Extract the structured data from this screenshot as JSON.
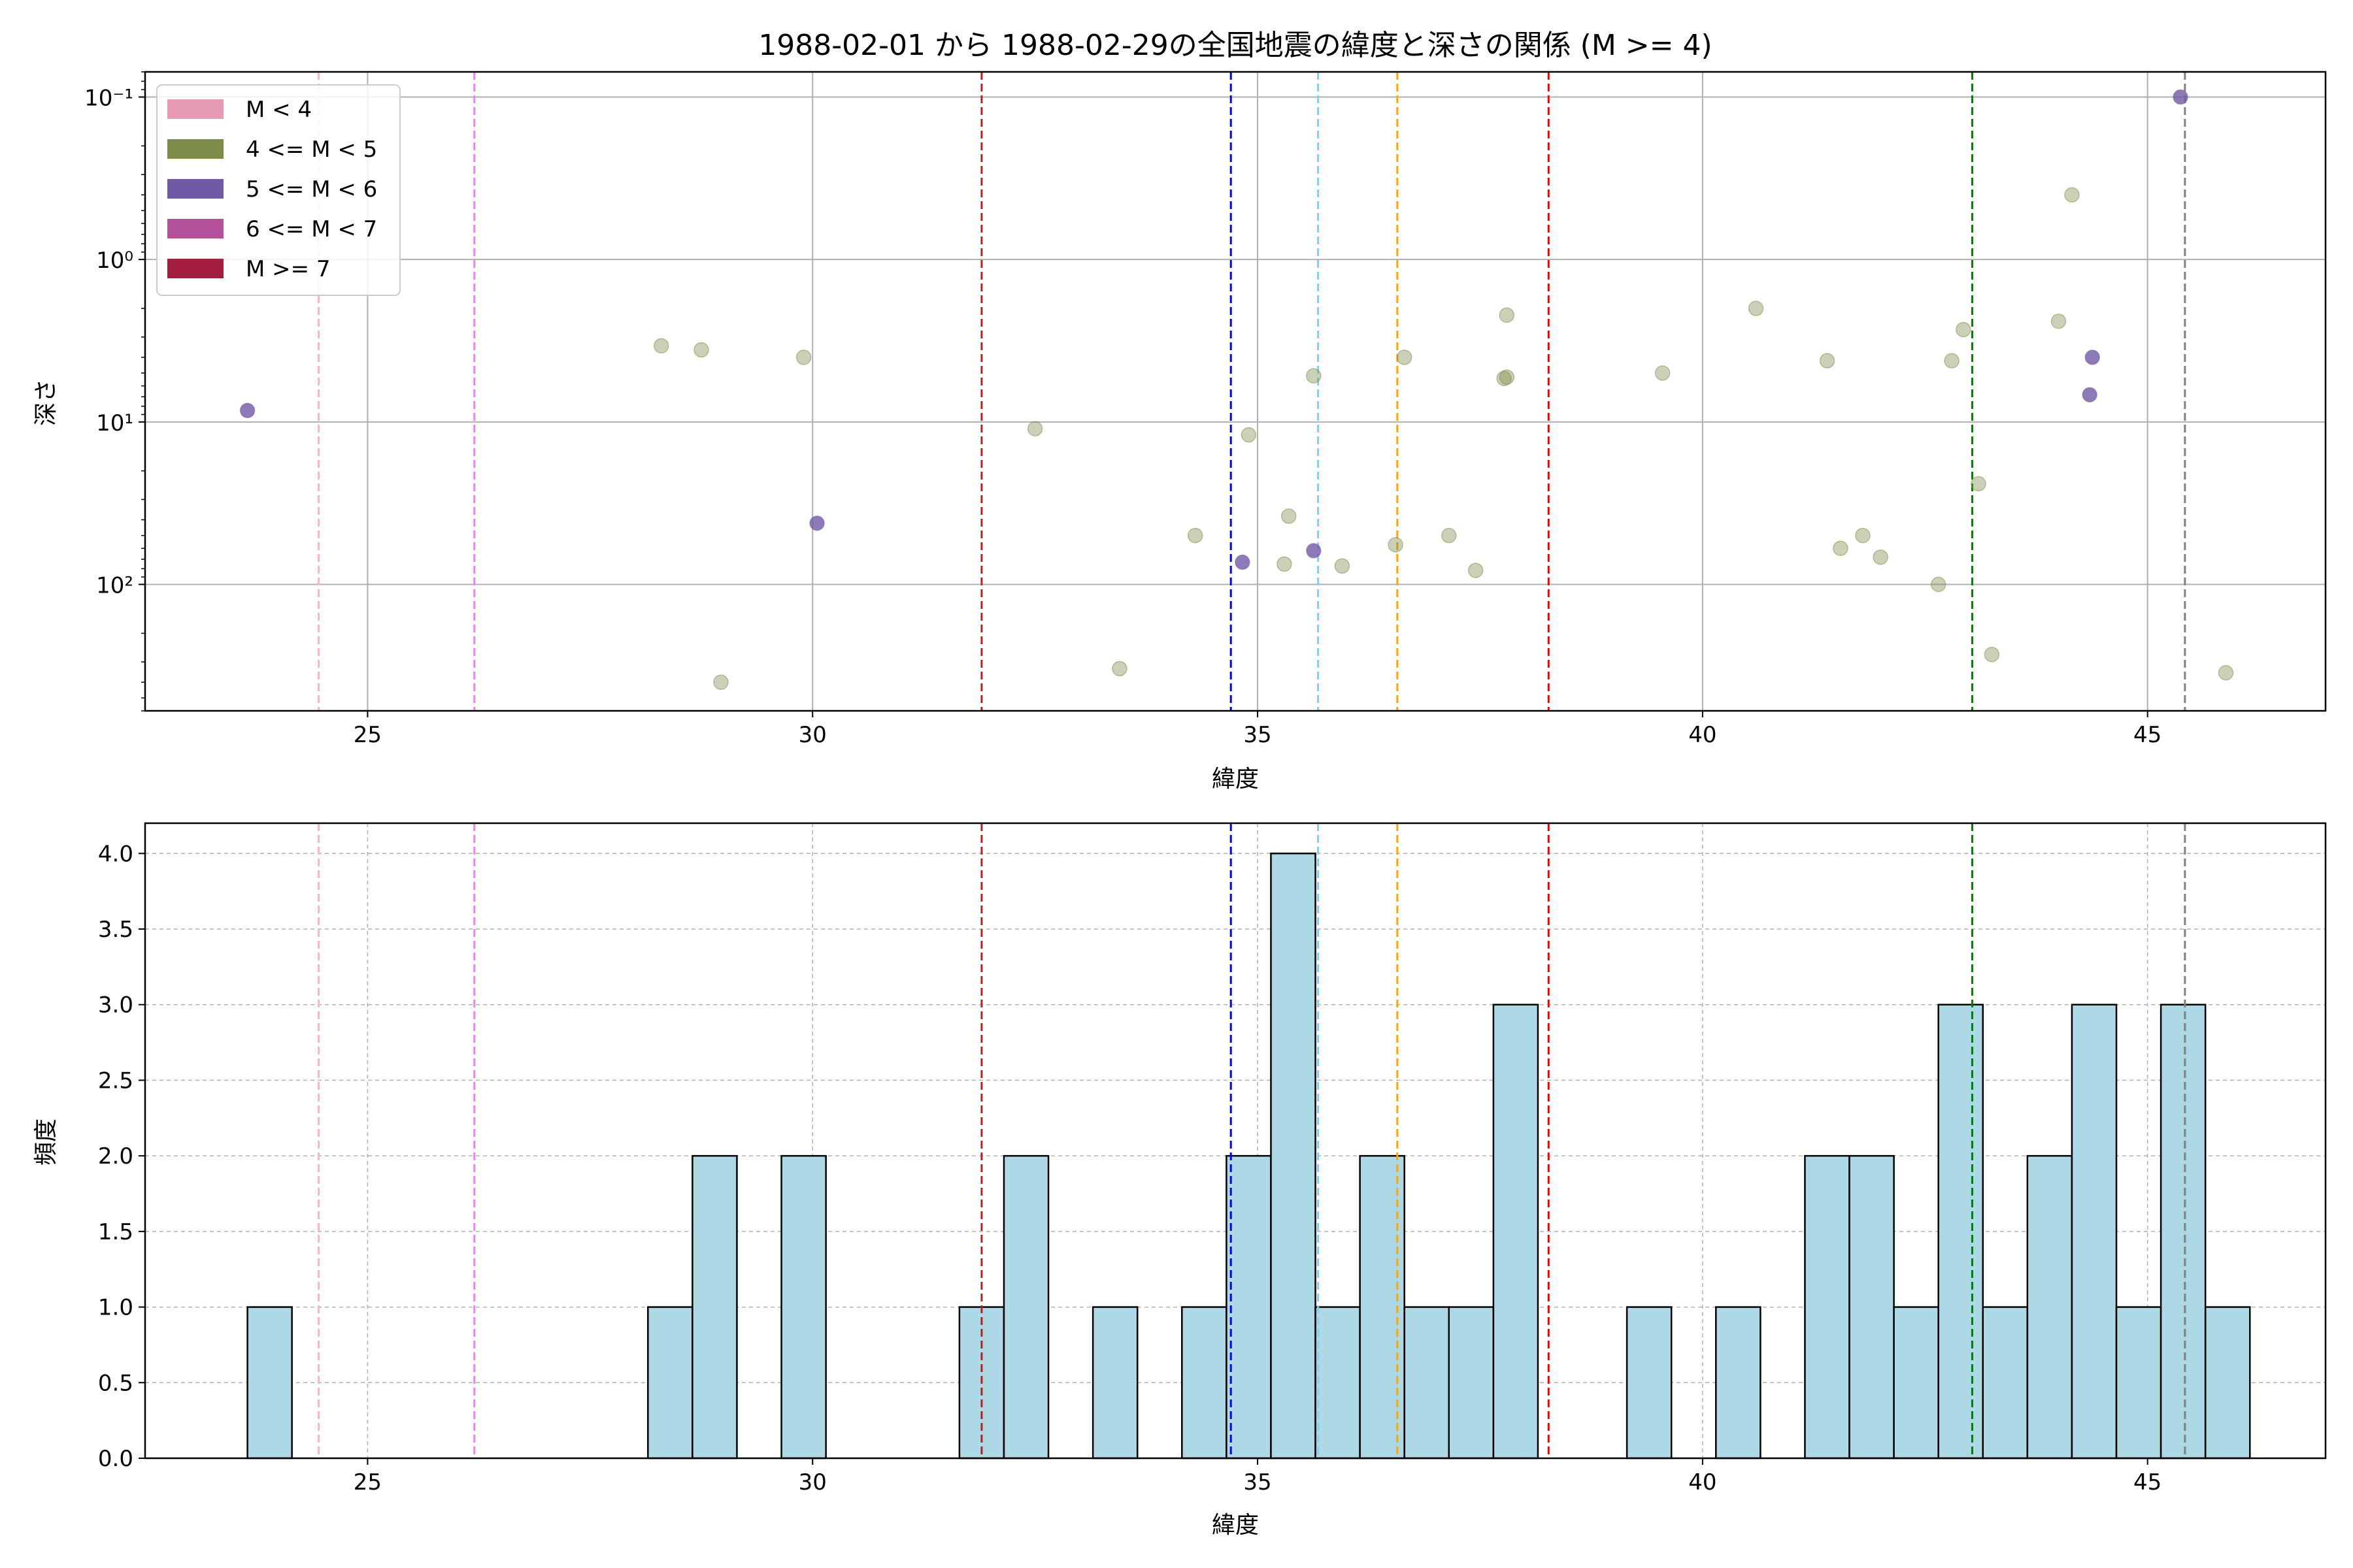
{
  "chart_data": [
    {
      "type": "scatter",
      "title": "1988-02-01 から 1988-02-29の全国地震の緯度と深さの関係 (M >= 4)",
      "xlabel": "緯度",
      "ylabel": "深さ",
      "xlim": [
        22.5,
        47.0
      ],
      "ylim_log": [
        0.07,
        600
      ],
      "y_scale": "log",
      "y_inverted": true,
      "grid": true,
      "xticks": [
        25,
        30,
        35,
        40,
        45
      ],
      "xtick_labels": [
        "25",
        "30",
        "35",
        "40",
        "45"
      ],
      "yticks": [
        0.1,
        1,
        10,
        100
      ],
      "ytick_labels": [
        "10⁻¹",
        "10⁰",
        "10¹",
        "10²"
      ],
      "legend": {
        "placement": "top-left",
        "entries": [
          {
            "label": "M < 4",
            "color": "#e79ab3"
          },
          {
            "label": "4 <= M < 5",
            "color": "#7d8c48"
          },
          {
            "label": "5 <= M < 6",
            "color": "#7059a5"
          },
          {
            "label": "6 <= M < 7",
            "color": "#b2519a"
          },
          {
            "label": "M >= 7",
            "color": "#a31e40"
          }
        ]
      },
      "vlines": [
        {
          "x": 24.45,
          "color": "#ffb6c1"
        },
        {
          "x": 26.2,
          "color": "#ee82ee"
        },
        {
          "x": 31.9,
          "color": "#b22222"
        },
        {
          "x": 34.7,
          "color": "#0000ff"
        },
        {
          "x": 35.68,
          "color": "#87ceeb"
        },
        {
          "x": 36.57,
          "color": "#ffa500"
        },
        {
          "x": 38.27,
          "color": "#ff0000"
        },
        {
          "x": 43.03,
          "color": "#008000"
        },
        {
          "x": 45.42,
          "color": "#808080"
        }
      ],
      "series": [
        {
          "color": "#7d8c48",
          "points": [
            [
              28.3,
              3.4
            ],
            [
              28.75,
              3.6
            ],
            [
              28.97,
              400
            ],
            [
              29.9,
              4.0
            ],
            [
              32.5,
              11
            ],
            [
              33.45,
              330
            ],
            [
              34.3,
              50
            ],
            [
              34.9,
              12
            ],
            [
              35.3,
              75
            ],
            [
              35.35,
              38
            ],
            [
              35.63,
              5.2
            ],
            [
              35.95,
              77
            ],
            [
              36.55,
              57
            ],
            [
              36.65,
              4.0
            ],
            [
              37.15,
              50
            ],
            [
              37.45,
              82
            ],
            [
              37.77,
              5.4
            ],
            [
              37.8,
              5.3
            ],
            [
              37.8,
              2.2
            ],
            [
              39.55,
              5.0
            ],
            [
              40.6,
              2.0
            ],
            [
              41.4,
              4.2
            ],
            [
              41.55,
              60
            ],
            [
              41.8,
              50
            ],
            [
              42.0,
              68
            ],
            [
              42.65,
              100
            ],
            [
              42.8,
              4.2
            ],
            [
              42.93,
              2.7
            ],
            [
              43.1,
              24
            ],
            [
              43.25,
              270
            ],
            [
              44.0,
              2.4
            ],
            [
              44.15,
              0.4
            ],
            [
              45.88,
              350
            ]
          ]
        },
        {
          "color": "#7059a5",
          "points": [
            [
              23.65,
              8.5
            ],
            [
              30.05,
              42
            ],
            [
              34.83,
              73
            ],
            [
              35.63,
              62
            ],
            [
              44.35,
              6.8
            ],
            [
              44.38,
              4.0
            ],
            [
              45.37,
              0.1
            ]
          ]
        }
      ]
    },
    {
      "type": "bar",
      "xlabel": "緯度",
      "ylabel": "頻度",
      "xlim": [
        22.5,
        47.0
      ],
      "ylim": [
        0,
        4.2
      ],
      "grid": true,
      "xticks": [
        25,
        30,
        35,
        40,
        45
      ],
      "xtick_labels": [
        "25",
        "30",
        "35",
        "40",
        "45"
      ],
      "yticks": [
        0.0,
        0.5,
        1.0,
        1.5,
        2.0,
        2.5,
        3.0,
        3.5,
        4.0
      ],
      "ytick_labels": [
        "0.0",
        "0.5",
        "1.0",
        "1.5",
        "2.0",
        "2.5",
        "3.0",
        "3.5",
        "4.0"
      ],
      "bar_color": "#add8e6",
      "bin_start": 23.65,
      "bin_width": 0.5,
      "values": [
        1,
        0,
        0,
        0,
        0,
        0,
        0,
        0,
        0,
        1,
        2,
        0,
        2,
        0,
        0,
        0,
        1,
        2,
        0,
        1,
        0,
        1,
        2,
        4,
        1,
        2,
        1,
        1,
        3,
        0,
        0,
        1,
        0,
        1,
        0,
        2,
        2,
        1,
        3,
        1,
        2,
        3,
        1,
        3,
        1
      ],
      "vlines": [
        {
          "x": 24.45,
          "color": "#ffb6c1"
        },
        {
          "x": 26.2,
          "color": "#ee82ee"
        },
        {
          "x": 31.9,
          "color": "#b22222"
        },
        {
          "x": 34.7,
          "color": "#0000ff"
        },
        {
          "x": 35.68,
          "color": "#87ceeb"
        },
        {
          "x": 36.57,
          "color": "#ffa500"
        },
        {
          "x": 38.27,
          "color": "#ff0000"
        },
        {
          "x": 43.03,
          "color": "#008000"
        },
        {
          "x": 45.42,
          "color": "#808080"
        }
      ]
    }
  ]
}
